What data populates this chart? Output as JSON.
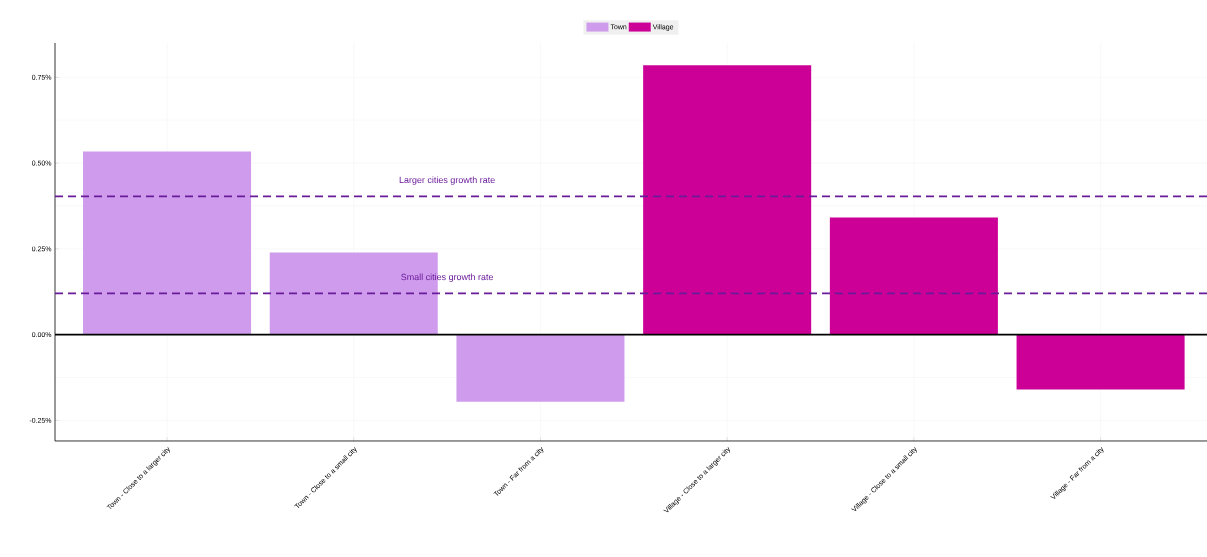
{
  "chart_data": {
    "type": "bar",
    "categories": [
      "Town - Close to a larger city",
      "Town - Close to a small city",
      "Town - Far from a city",
      "Village - Close to a larger city",
      "Village - Close to a small city",
      "Village - Far from a city"
    ],
    "series": [
      {
        "name": "Town",
        "color": "#cf9ced",
        "values": [
          0.534,
          0.239,
          -0.196,
          null,
          null,
          null
        ]
      },
      {
        "name": "Village",
        "color": "#cc0096",
        "values": [
          null,
          null,
          null,
          0.785,
          0.341,
          -0.16
        ]
      }
    ],
    "ylim": [
      -0.31,
      0.85
    ],
    "yticks": [
      {
        "value": -0.25,
        "label": "-0.25%"
      },
      {
        "value": 0,
        "label": "0.00%"
      },
      {
        "value": 0.25,
        "label": "0.25%"
      },
      {
        "value": 0.5,
        "label": "0.50%"
      },
      {
        "value": 0.75,
        "label": "0.75%"
      }
    ],
    "ref_lines": [
      {
        "axis": "y",
        "value": 0.403,
        "label": "Larger cities growth rate",
        "color": "#6a1b9a",
        "line_style": "dashed"
      },
      {
        "axis": "y",
        "value": 0.12,
        "label": "Small cities growth rate",
        "color": "#6a1b9a",
        "line_style": "dashed"
      }
    ],
    "grid": true,
    "legend": "top"
  }
}
